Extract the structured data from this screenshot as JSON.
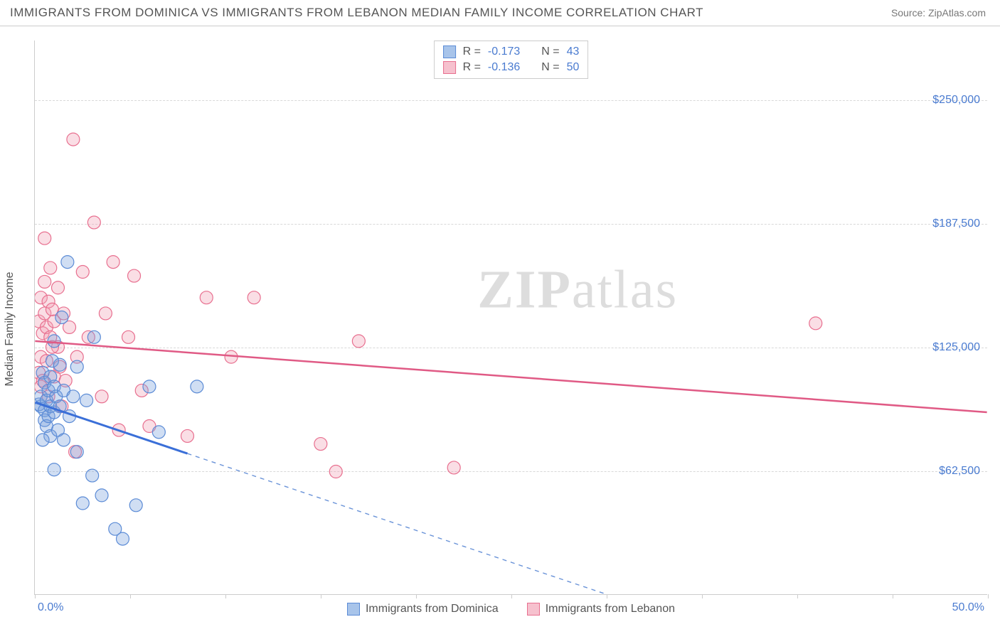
{
  "title": "IMMIGRANTS FROM DOMINICA VS IMMIGRANTS FROM LEBANON MEDIAN FAMILY INCOME CORRELATION CHART",
  "source": "Source: ZipAtlas.com",
  "watermark_a": "ZIP",
  "watermark_b": "atlas",
  "chart": {
    "type": "scatter",
    "y_axis_title": "Median Family Income",
    "xlim": [
      0,
      50
    ],
    "ylim": [
      0,
      280000
    ],
    "x_min_label": "0.0%",
    "x_max_label": "50.0%",
    "y_ticks": [
      {
        "value": 62500,
        "label": "$62,500"
      },
      {
        "value": 125000,
        "label": "$125,000"
      },
      {
        "value": 187500,
        "label": "$187,500"
      },
      {
        "value": 250000,
        "label": "$250,000"
      }
    ],
    "x_tick_values": [
      0,
      5,
      10,
      15,
      20,
      25,
      30,
      35,
      40,
      45,
      50
    ],
    "background_color": "#ffffff",
    "grid_color": "#d8d8d8",
    "marker_radius": 9,
    "series": [
      {
        "name": "Immigrants from Dominica",
        "fill_color": "#a8c4ea",
        "stroke_color": "#5b8bd6",
        "R": "-0.173",
        "N": "43",
        "trend": {
          "x1": 0,
          "y1": 97000,
          "x2": 30,
          "y2": 0,
          "solid_until_x": 8,
          "solid_color": "#3a6fd8",
          "dash_color": "#6a93d8"
        },
        "points": [
          [
            0.2,
            96000
          ],
          [
            0.3,
            95000
          ],
          [
            0.3,
            100000
          ],
          [
            0.4,
            112000
          ],
          [
            0.5,
            93000
          ],
          [
            0.5,
            107000
          ],
          [
            0.5,
            88000
          ],
          [
            0.6,
            85000
          ],
          [
            0.6,
            98000
          ],
          [
            0.7,
            103000
          ],
          [
            0.7,
            90000
          ],
          [
            0.8,
            110000
          ],
          [
            0.8,
            80000
          ],
          [
            0.8,
            95000
          ],
          [
            0.9,
            118000
          ],
          [
            1.0,
            105000
          ],
          [
            1.0,
            92000
          ],
          [
            1.0,
            128000
          ],
          [
            1.1,
            100000
          ],
          [
            1.2,
            83000
          ],
          [
            1.3,
            116000
          ],
          [
            1.3,
            95000
          ],
          [
            1.4,
            140000
          ],
          [
            1.5,
            78000
          ],
          [
            1.5,
            103000
          ],
          [
            1.7,
            168000
          ],
          [
            1.8,
            90000
          ],
          [
            2.0,
            100000
          ],
          [
            2.2,
            72000
          ],
          [
            2.2,
            115000
          ],
          [
            2.5,
            46000
          ],
          [
            2.7,
            98000
          ],
          [
            3.0,
            60000
          ],
          [
            3.1,
            130000
          ],
          [
            3.5,
            50000
          ],
          [
            4.2,
            33000
          ],
          [
            4.6,
            28000
          ],
          [
            5.3,
            45000
          ],
          [
            6.0,
            105000
          ],
          [
            6.5,
            82000
          ],
          [
            8.5,
            105000
          ],
          [
            1.0,
            63000
          ],
          [
            0.4,
            78000
          ]
        ]
      },
      {
        "name": "Immigrants from Lebanon",
        "fill_color": "#f6c1ce",
        "stroke_color": "#e86f8f",
        "R": "-0.136",
        "N": "50",
        "trend": {
          "x1": 0,
          "y1": 128000,
          "x2": 50,
          "y2": 92000,
          "color": "#e05a85"
        },
        "points": [
          [
            0.2,
            138000
          ],
          [
            0.2,
            112000
          ],
          [
            0.3,
            150000
          ],
          [
            0.3,
            120000
          ],
          [
            0.4,
            108000
          ],
          [
            0.4,
            132000
          ],
          [
            0.5,
            142000
          ],
          [
            0.5,
            158000
          ],
          [
            0.5,
            180000
          ],
          [
            0.6,
            135000
          ],
          [
            0.6,
            118000
          ],
          [
            0.7,
            148000
          ],
          [
            0.7,
            100000
          ],
          [
            0.8,
            130000
          ],
          [
            0.8,
            165000
          ],
          [
            0.9,
            144000
          ],
          [
            1.0,
            138000
          ],
          [
            1.0,
            110000
          ],
          [
            1.2,
            125000
          ],
          [
            1.2,
            155000
          ],
          [
            1.4,
            95000
          ],
          [
            1.5,
            142000
          ],
          [
            1.6,
            108000
          ],
          [
            1.8,
            135000
          ],
          [
            2.0,
            230000
          ],
          [
            2.1,
            72000
          ],
          [
            2.2,
            120000
          ],
          [
            2.5,
            163000
          ],
          [
            2.8,
            130000
          ],
          [
            3.1,
            188000
          ],
          [
            3.5,
            100000
          ],
          [
            3.7,
            142000
          ],
          [
            4.1,
            168000
          ],
          [
            4.4,
            83000
          ],
          [
            4.9,
            130000
          ],
          [
            5.2,
            161000
          ],
          [
            5.6,
            103000
          ],
          [
            6.0,
            85000
          ],
          [
            8.0,
            80000
          ],
          [
            9.0,
            150000
          ],
          [
            10.3,
            120000
          ],
          [
            11.5,
            150000
          ],
          [
            15.0,
            76000
          ],
          [
            15.8,
            62000
          ],
          [
            17.0,
            128000
          ],
          [
            22.0,
            64000
          ],
          [
            41.0,
            137000
          ],
          [
            0.3,
            105000
          ],
          [
            0.9,
            125000
          ],
          [
            1.3,
            115000
          ]
        ]
      }
    ]
  },
  "labels": {
    "R": "R =",
    "N": "N ="
  }
}
